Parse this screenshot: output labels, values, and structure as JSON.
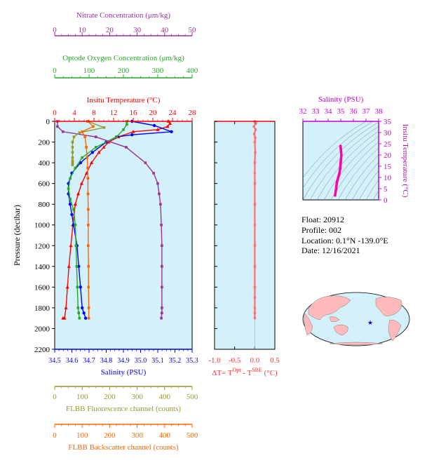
{
  "float_info": {
    "float_label": "Float:",
    "float_value": "20912",
    "profile_label": "Profile:",
    "profile_value": "002",
    "location_label": "Location:",
    "location_value": "0.1°N  -139.0°E",
    "date_label": "Date:",
    "date_value": "12/16/2021"
  },
  "colors": {
    "nitrate": "#993399",
    "oxygen": "#22aa22",
    "temperature": "#ff0000",
    "salinity": "#0000ff",
    "fluorescence": "#999933",
    "backscatter": "#ff6600",
    "delta_t": "#ff6666",
    "ts_axis": "#cc00cc",
    "ts_curve": "#ff00aa",
    "panel_bg": "#d4f0fa",
    "map_land": "#ffbbbb"
  },
  "map": {
    "marker": "star",
    "marker_color": "#0000ff"
  },
  "chart_data": [
    {
      "type": "line",
      "ylabel": "Pressure (decibar)",
      "ylim": [
        2200,
        0
      ],
      "yticks": [
        0,
        200,
        400,
        600,
        800,
        1000,
        1200,
        1400,
        1600,
        1800,
        2000,
        2200
      ],
      "grid": false,
      "axes": [
        {
          "key": "temperature",
          "title": "Insitu Temperature (°C)",
          "position": "top",
          "lim": [
            0,
            28
          ],
          "ticks": [
            "0",
            "4",
            "8",
            "12",
            "16",
            "20",
            "24",
            "28"
          ]
        },
        {
          "key": "oxygen",
          "title": "Optode Oxygen Concentration (μm/kg)",
          "position": "top",
          "lim": [
            0,
            400
          ],
          "ticks": [
            "0",
            "100",
            "200",
            "300",
            "400"
          ]
        },
        {
          "key": "nitrate",
          "title": "Nitrate Concentration (μm/kg)",
          "position": "top",
          "lim": [
            0,
            50
          ],
          "ticks": [
            "0",
            "10",
            "20",
            "30",
            "40",
            "50"
          ]
        },
        {
          "key": "salinity",
          "title": "Salinity (PSU)",
          "position": "bottom",
          "lim": [
            34.5,
            35.3
          ],
          "ticks": [
            "34.5",
            "34.6",
            "34.7",
            "34.8",
            "34.9",
            "35.0",
            "35.1",
            "35.2",
            "35.3"
          ]
        },
        {
          "key": "fluorescence",
          "title": "FLBB Fluorescence channel (counts)",
          "position": "bottom",
          "lim": [
            0,
            500
          ],
          "ticks": [
            "0",
            "100",
            "200",
            "300",
            "400",
            "500"
          ]
        },
        {
          "key": "backscatter",
          "title": "FLBB Backscatter channel (counts)",
          "position": "bottom",
          "lim": [
            0,
            500
          ],
          "ticks": [
            "0",
            "100",
            "200",
            "300",
            "400",
            "500"
          ]
        }
      ],
      "series": [
        {
          "key": "temperature",
          "marker": "triangle",
          "x": [
            23.2,
            23.5,
            23.0,
            21.0,
            16.0,
            13.0,
            11.0,
            10.0,
            9.0,
            7.5,
            6.5,
            5.5,
            4.8,
            4.2,
            3.7,
            3.3,
            2.9,
            2.6,
            2.3,
            2.0,
            1.7
          ],
          "y": [
            0,
            20,
            50,
            80,
            100,
            150,
            200,
            250,
            300,
            400,
            500,
            600,
            700,
            800,
            1000,
            1200,
            1400,
            1600,
            1800,
            1900,
            1900
          ]
        },
        {
          "key": "salinity",
          "marker": "circle",
          "x": [
            34.95,
            35.08,
            35.18,
            34.95,
            34.86,
            34.8,
            34.72,
            34.65,
            34.6,
            34.58,
            34.58,
            34.59,
            34.6,
            34.61,
            34.63,
            34.64,
            34.65,
            34.66,
            34.67,
            34.68
          ],
          "y": [
            0,
            40,
            100,
            130,
            150,
            200,
            300,
            400,
            500,
            600,
            700,
            800,
            900,
            1000,
            1200,
            1400,
            1600,
            1800,
            1850,
            1900
          ]
        },
        {
          "key": "oxygen",
          "marker": "square",
          "x": [
            210,
            210,
            200,
            180,
            120,
            80,
            60,
            45,
            40,
            45,
            55,
            60,
            62,
            64,
            66,
            68,
            70,
            72
          ],
          "y": [
            0,
            30,
            80,
            150,
            250,
            350,
            450,
            550,
            650,
            750,
            850,
            1000,
            1200,
            1400,
            1600,
            1800,
            1850,
            1900
          ]
        },
        {
          "key": "nitrate",
          "marker": "square",
          "x": [
            1.0,
            1.0,
            3.0,
            15.0,
            26.0,
            33.0,
            36.0,
            37.5,
            38.0,
            38.5,
            38.8,
            39.0,
            39.0,
            39.0,
            39.0,
            39.0,
            38.8
          ],
          "y": [
            0,
            50,
            100,
            150,
            250,
            400,
            500,
            600,
            700,
            800,
            1000,
            1200,
            1400,
            1600,
            1800,
            1850,
            1900
          ]
        },
        {
          "key": "fluorescence",
          "marker": "square",
          "x": [
            120,
            180,
            90,
            70,
            65,
            65,
            65,
            65,
            65,
            65,
            65
          ],
          "y": [
            0,
            60,
            110,
            150,
            200,
            250,
            300,
            350,
            380,
            400,
            420
          ]
        },
        {
          "key": "backscatter",
          "marker": "square",
          "x": [
            120,
            140,
            100,
            110,
            115,
            118,
            120,
            121,
            121,
            122,
            122,
            122,
            123,
            123,
            124,
            124
          ],
          "y": [
            0,
            50,
            100,
            150,
            250,
            350,
            450,
            550,
            700,
            850,
            1000,
            1200,
            1400,
            1600,
            1800,
            1900
          ]
        }
      ]
    },
    {
      "type": "line",
      "xlabel": "ΔT= T",
      "xlabel_sup1": "Opt",
      "xlabel_mid": " - T",
      "xlabel_sup2": "SBE",
      "xlabel_unit": " (°C)",
      "xlim": [
        -1.0,
        0.5
      ],
      "xticks": [
        "-1.0",
        "-0.5",
        "0.0",
        "0.5"
      ],
      "ylim": [
        2200,
        0
      ],
      "series": [
        {
          "key": "delta_t",
          "x": [
            0.0,
            0.03,
            -0.02,
            0.02,
            -0.01,
            0.01,
            0.0,
            0.01,
            0.0,
            0.0,
            0.0,
            0.0,
            0.0,
            0.0,
            0.0,
            0.0,
            0.0,
            0.0,
            0.0,
            0.0
          ],
          "y": [
            0,
            20,
            50,
            80,
            120,
            160,
            200,
            300,
            400,
            500,
            600,
            800,
            1000,
            1200,
            1400,
            1600,
            1700,
            1800,
            1850,
            1900
          ]
        }
      ]
    },
    {
      "type": "line",
      "xlabel": "Salinity (PSU)",
      "ylabel": "Insitu Temperature (°C)",
      "xlim": [
        32,
        38
      ],
      "ylim": [
        0,
        35
      ],
      "xticks": [
        "32",
        "33",
        "34",
        "35",
        "36",
        "37",
        "38"
      ],
      "yticks": [
        "0",
        "5",
        "10",
        "15",
        "20",
        "25",
        "30",
        "35"
      ],
      "series": [
        {
          "key": "ts_curve",
          "x": [
            34.55,
            34.58,
            34.6,
            34.63,
            34.65,
            34.7,
            34.8,
            34.9,
            34.95,
            35.0,
            35.05,
            35.0,
            34.98
          ],
          "y": [
            2.0,
            3.0,
            4.0,
            5.0,
            6.0,
            8.0,
            10.0,
            12.0,
            14.0,
            17.0,
            20.0,
            23.0,
            24.0
          ]
        }
      ]
    }
  ]
}
